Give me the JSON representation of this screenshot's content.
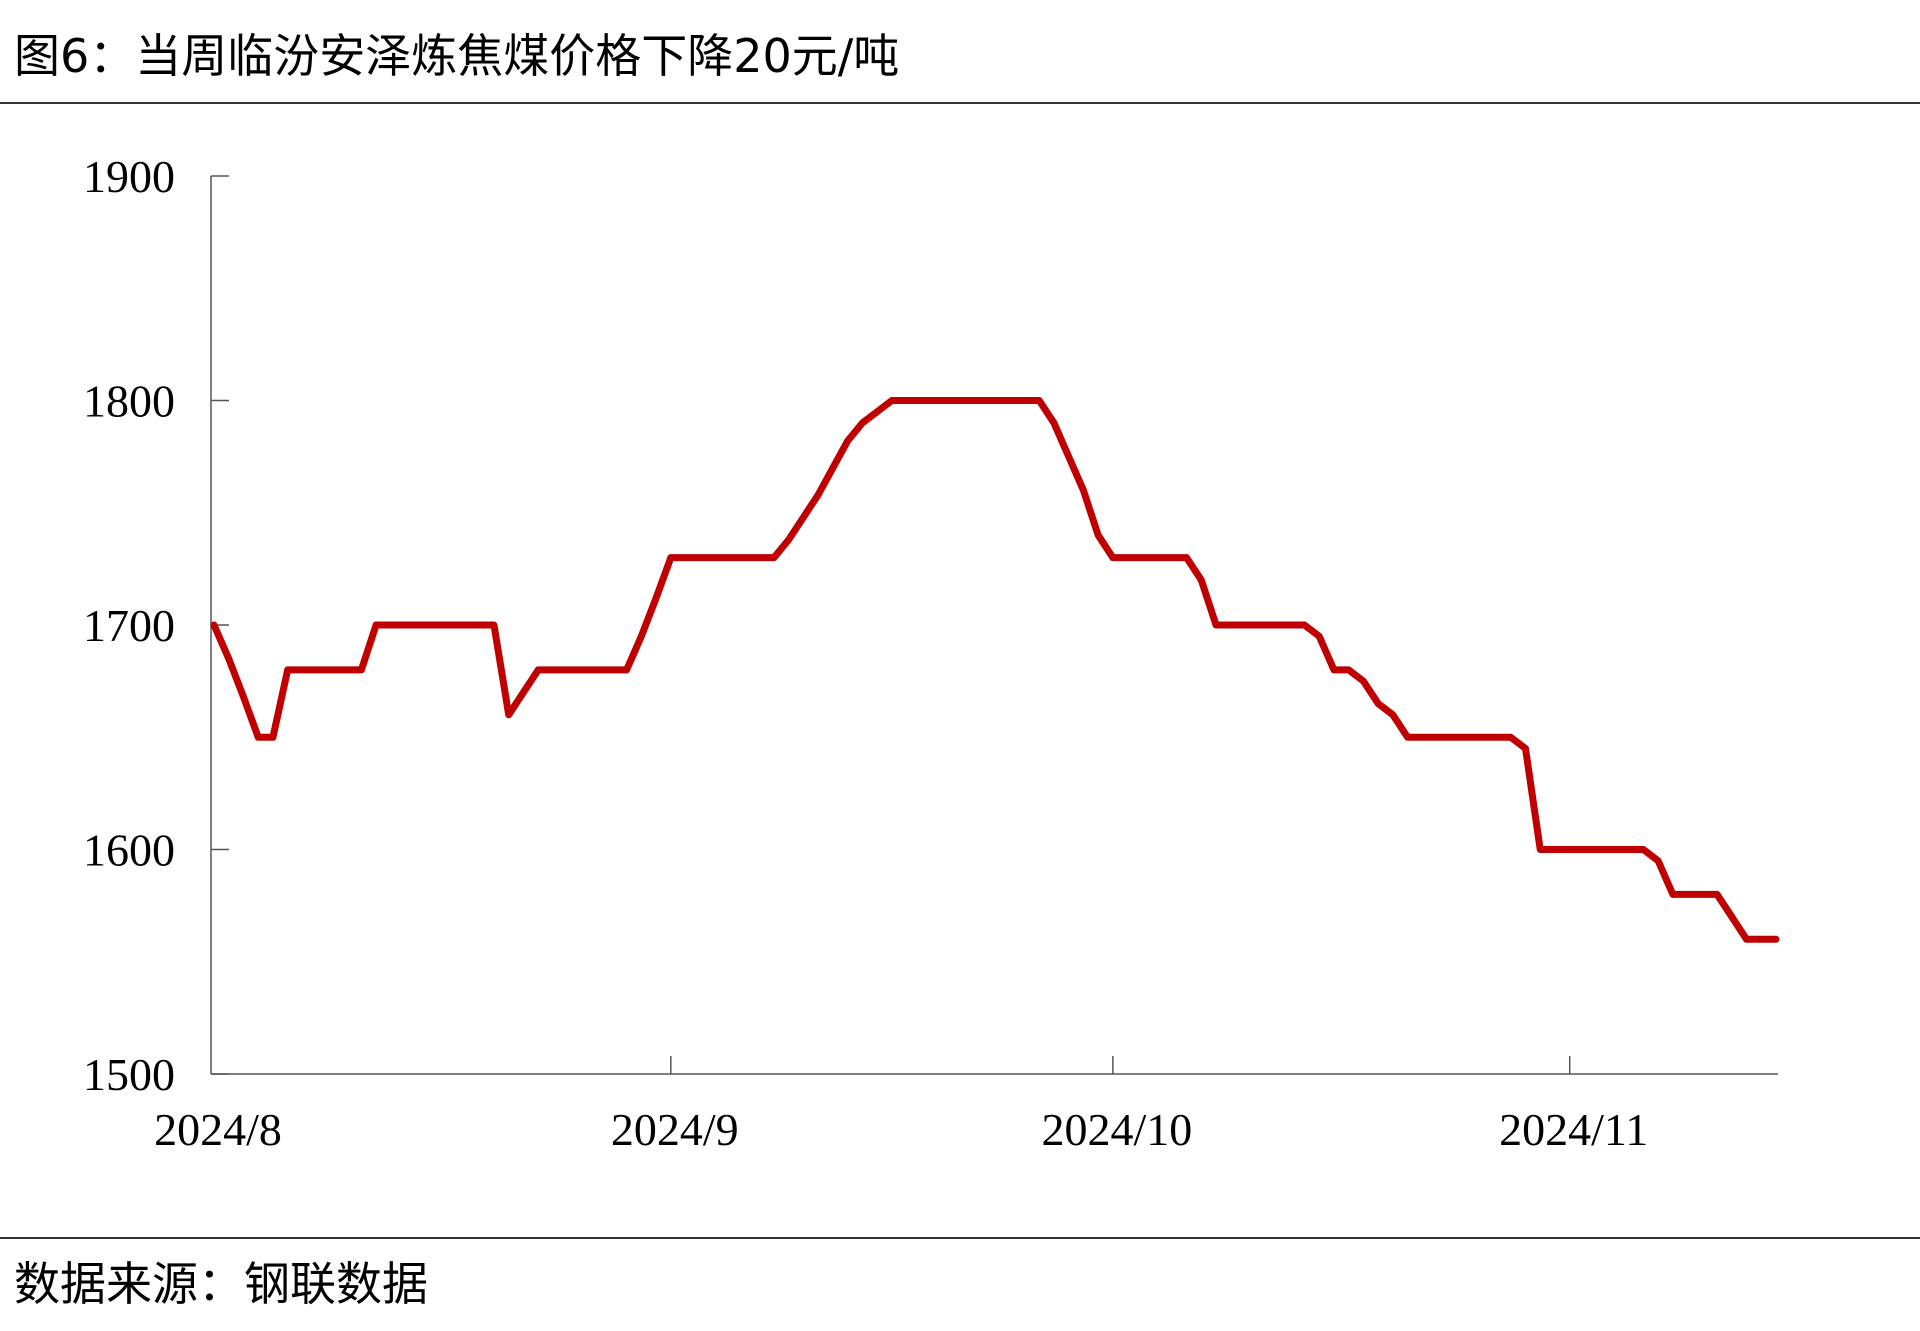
{
  "chart_data": {
    "type": "line",
    "title": "图6：当周临汾安泽炼焦煤价格下降20元/吨",
    "source": "数据来源：钢联数据",
    "categories": [
      "2024/8",
      null,
      null,
      null,
      null,
      null,
      null,
      null,
      null,
      null,
      null,
      null,
      null,
      null,
      null,
      null,
      null,
      null,
      null,
      null,
      null,
      null,
      null,
      null,
      null,
      null,
      null,
      null,
      null,
      null,
      null,
      "2024/9",
      null,
      null,
      null,
      null,
      null,
      null,
      null,
      null,
      null,
      null,
      null,
      null,
      null,
      null,
      null,
      null,
      null,
      null,
      null,
      null,
      null,
      null,
      null,
      null,
      null,
      null,
      null,
      null,
      null,
      "2024/10",
      null,
      null,
      null,
      null,
      null,
      null,
      null,
      null,
      null,
      null,
      null,
      null,
      null,
      null,
      null,
      null,
      null,
      null,
      null,
      null,
      null,
      null,
      null,
      null,
      null,
      null,
      null,
      null,
      null,
      null,
      "2024/11",
      null,
      null,
      null,
      null,
      null,
      null,
      null,
      null,
      null,
      null,
      null,
      null,
      null,
      null
    ],
    "series": [
      {
        "color": "#c00000",
        "values": [
          1700,
          1685,
          1668,
          1650,
          1650,
          1680,
          1680,
          1680,
          1680,
          1680,
          1680,
          1700,
          1700,
          1700,
          1700,
          1700,
          1700,
          1700,
          1700,
          1700,
          1660,
          1670,
          1680,
          1680,
          1680,
          1680,
          1680,
          1680,
          1680,
          1695,
          1712,
          1730,
          1730,
          1730,
          1730,
          1730,
          1730,
          1730,
          1730,
          1738,
          1748,
          1758,
          1770,
          1782,
          1790,
          1795,
          1800,
          1800,
          1800,
          1800,
          1800,
          1800,
          1800,
          1800,
          1800,
          1800,
          1800,
          1790,
          1775,
          1760,
          1740,
          1730,
          1730,
          1730,
          1730,
          1730,
          1730,
          1720,
          1700,
          1700,
          1700,
          1700,
          1700,
          1700,
          1700,
          1695,
          1680,
          1680,
          1675,
          1665,
          1660,
          1650,
          1650,
          1650,
          1650,
          1650,
          1650,
          1650,
          1650,
          1645,
          1600,
          1600,
          1600,
          1600,
          1600,
          1600,
          1600,
          1600,
          1595,
          1580,
          1580,
          1580,
          1580,
          1570,
          1560,
          1560,
          1560
        ]
      }
    ],
    "ylim": [
      1500,
      1900
    ],
    "yticks": [
      1500,
      1600,
      1700,
      1800,
      1900
    ]
  }
}
